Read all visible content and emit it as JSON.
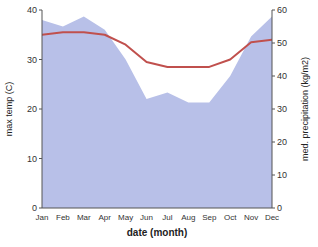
{
  "chart_data": {
    "type": "line",
    "xlabel": "date (month)",
    "ylabel": "max temp (C)",
    "y2label": "med. precipitation (kg/m2)",
    "categories": [
      "Jan",
      "Feb",
      "Mar",
      "Apr",
      "May",
      "Jun",
      "Jul",
      "Aug",
      "Sep",
      "Oct",
      "Nov",
      "Dec"
    ],
    "series": [
      {
        "type": "area",
        "axis": "y2",
        "color": "#b8c0e8",
        "values": [
          57,
          55,
          58,
          54,
          45,
          33,
          35,
          32,
          32,
          40,
          52,
          58
        ]
      },
      {
        "type": "line",
        "color": "#c0504d",
        "values": [
          35,
          35.5,
          35.5,
          35,
          33,
          29.5,
          28.5,
          28.5,
          28.5,
          30,
          33.5,
          34
        ]
      }
    ],
    "ylim": [
      0,
      40
    ],
    "yticks": [
      0,
      10,
      20,
      30,
      40
    ],
    "y2lim": [
      0,
      60
    ],
    "y2ticks": [
      0,
      10,
      20,
      30,
      40,
      50,
      60
    ],
    "grid": false
  }
}
